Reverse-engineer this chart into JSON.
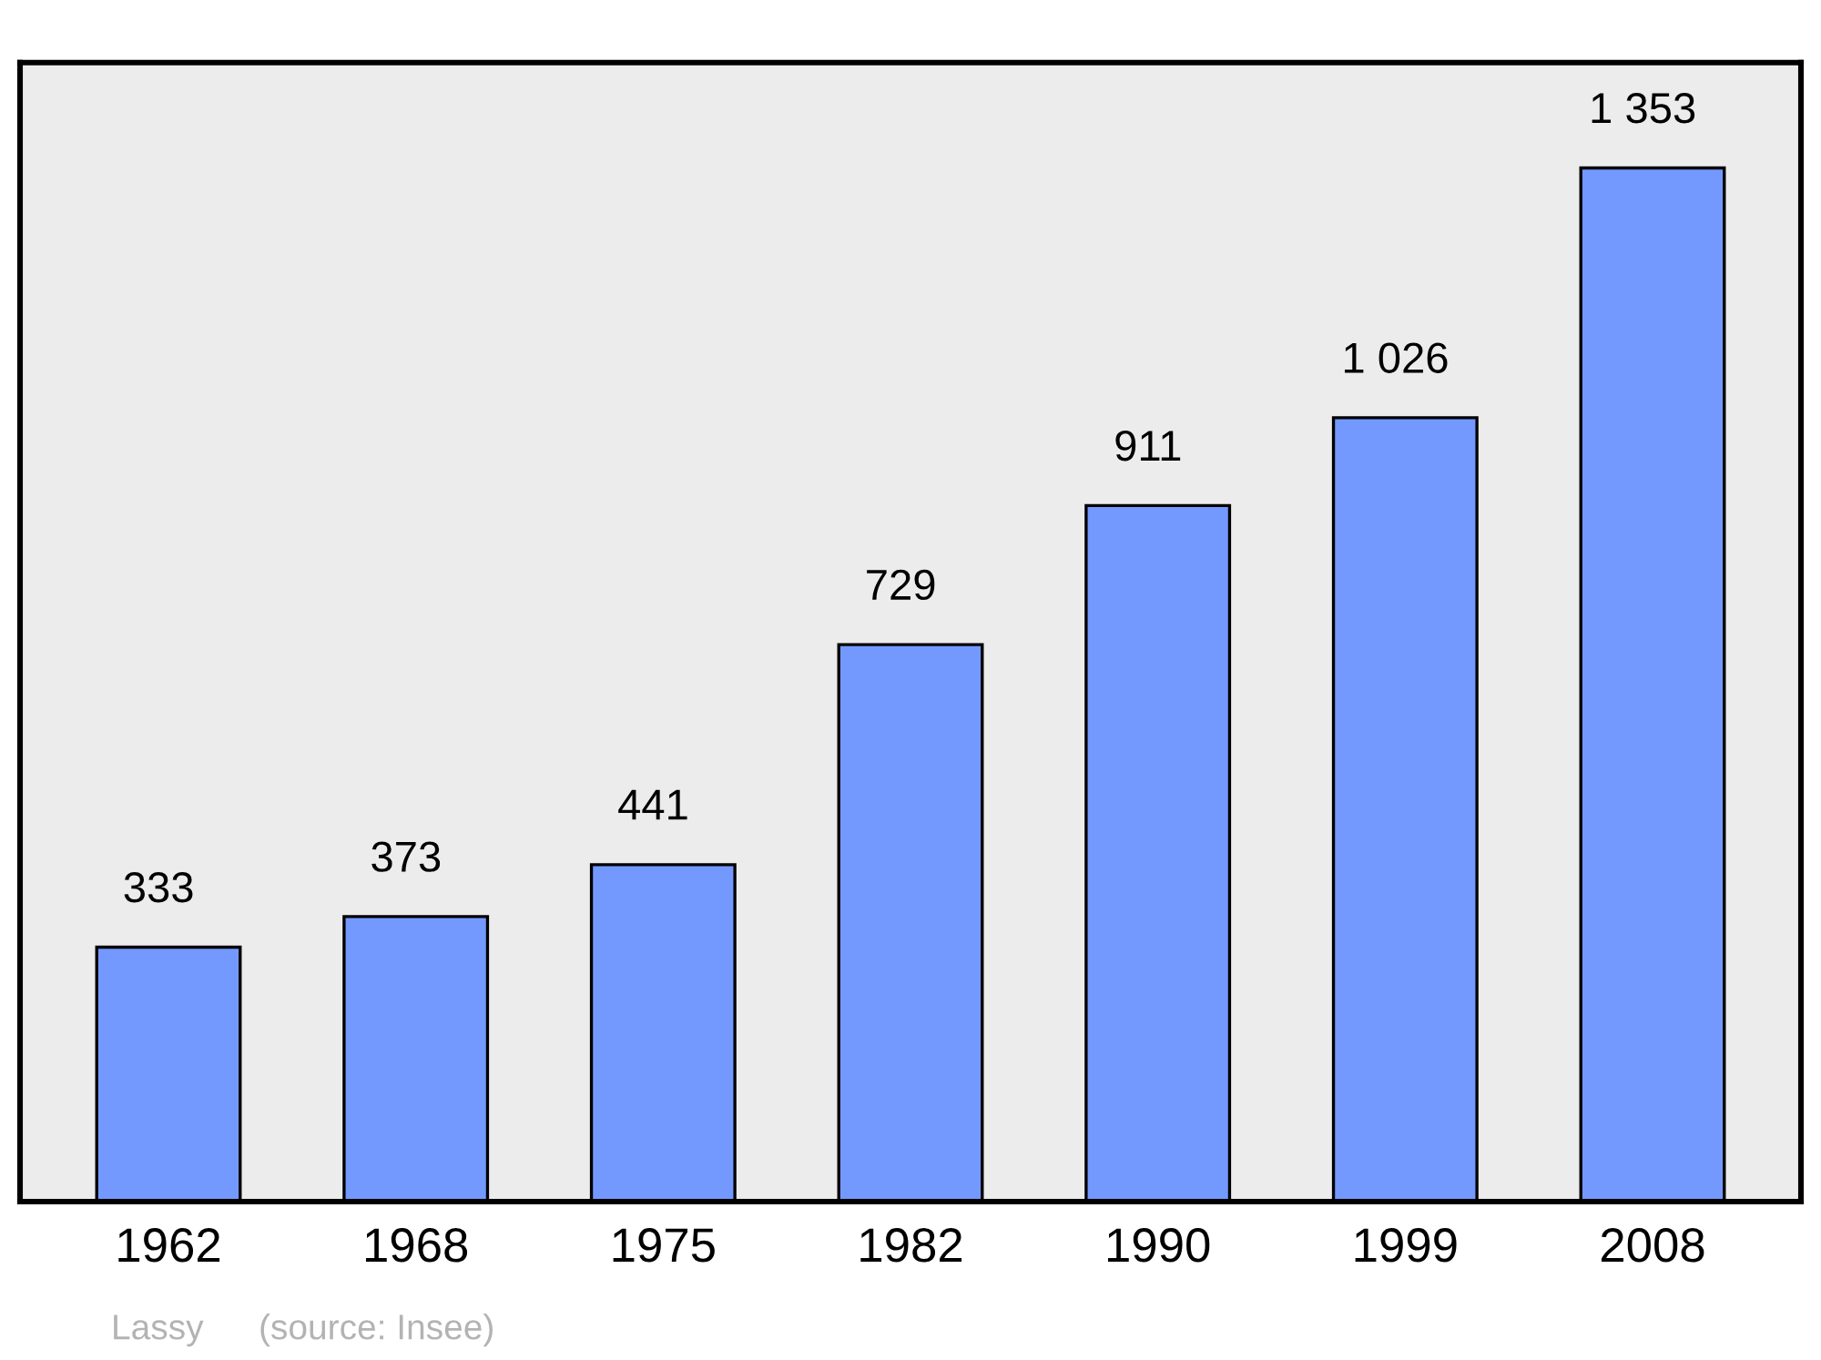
{
  "chart_data": {
    "type": "bar",
    "categories": [
      "1962",
      "1968",
      "1975",
      "1982",
      "1990",
      "1999",
      "2008"
    ],
    "values": [
      333,
      373,
      441,
      729,
      911,
      1026,
      1353
    ],
    "value_labels": [
      "333",
      "373",
      "441",
      "729",
      "911",
      "1 026",
      "1 353"
    ],
    "color": "#7399ff",
    "grid": false,
    "legend": false,
    "annotations": [
      "Lassy",
      "(source: Insee)"
    ]
  }
}
